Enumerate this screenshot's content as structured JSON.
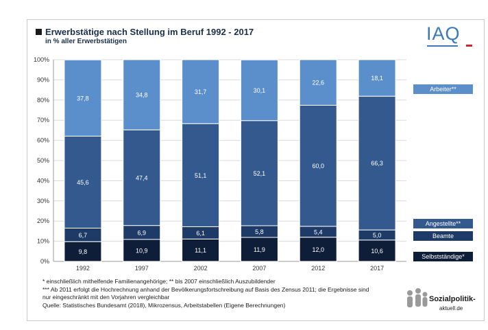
{
  "header": {
    "title": "Erwerbstätige nach Stellung im Beruf 1992 - 2017",
    "subtitle": "in % aller Erwerbstätigen"
  },
  "logo": {
    "iaq": "IAQ",
    "sozialpolitik_line1": "Sozialpolitik-",
    "sozialpolitik_line2": "aktuell.de"
  },
  "colors": {
    "arbeiter": "#5b8fcc",
    "angestellte": "#33598f",
    "beamte": "#1e3a66",
    "selbststaendige": "#0f1e38"
  },
  "chart_data": {
    "type": "bar",
    "stacked": true,
    "categories": [
      "1992",
      "1997",
      "2002",
      "2007",
      "2012",
      "2017"
    ],
    "series": [
      {
        "name": "Selbstständige*",
        "values": [
          9.8,
          10.9,
          11.1,
          11.9,
          12.0,
          10.6
        ],
        "labels": [
          "9,8",
          "10,9",
          "11,1",
          "11,9",
          "12,0",
          "10,6"
        ]
      },
      {
        "name": "Beamte",
        "values": [
          6.7,
          6.9,
          6.1,
          5.8,
          5.4,
          5.0
        ],
        "labels": [
          "6,7",
          "6,9",
          "6,1",
          "5,8",
          "5,4",
          "5,0"
        ]
      },
      {
        "name": "Angestellte**",
        "values": [
          45.6,
          47.4,
          51.1,
          52.1,
          60.0,
          66.3
        ],
        "labels": [
          "45,6",
          "47,4",
          "51,1",
          "52,1",
          "60,0",
          "66,3"
        ]
      },
      {
        "name": "Arbeiter**",
        "values": [
          37.8,
          34.8,
          31.7,
          30.1,
          22.6,
          18.1
        ],
        "labels": [
          "37,8",
          "34,8",
          "31,7",
          "30,1",
          "22,6",
          "18,1"
        ]
      }
    ],
    "y_ticks": [
      "0%",
      "10%",
      "20%",
      "30%",
      "40%",
      "50%",
      "60%",
      "70%",
      "80%",
      "90%",
      "100%"
    ],
    "ylim": [
      0,
      100
    ],
    "grid": true,
    "legend": "right"
  },
  "notes": {
    "line1": "* einschließlich mithelfende Familienangehörige; ** bis 2007 einschließlich Auszubildender",
    "line2": "*** Ab 2011 erfolgt die Hochrechnung anhand der Bevölkerungsfortschreibung auf Basis des Zensus 2011; die Ergebnisse sind",
    "line3": "nur eingeschränkt mit den Vorjahren vergleichbar",
    "line4": "Quelle: Statistisches Bundesamt (2018), Mikrozensus, Arbeitstabellen (Eigene Berechnungen)"
  }
}
